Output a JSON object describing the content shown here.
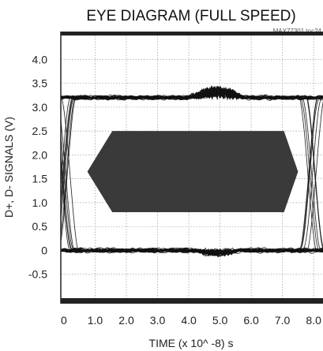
{
  "chart_data": {
    "type": "line",
    "title": "EYE DIAGRAM (FULL SPEED)",
    "annotation": "MAX77301 toc24",
    "xlabel": "TIME (x 10^ -8) s",
    "ylabel": "D+, D- SIGNALS (V)",
    "xlim": [
      -0.1,
      8.3
    ],
    "ylim": [
      -1.0,
      4.5
    ],
    "grid": true,
    "x_ticks": [
      0,
      1.0,
      2.0,
      3.0,
      4.0,
      5.0,
      6.0,
      7.0,
      8.0
    ],
    "x_tick_labels": [
      "0",
      "1.0",
      "2.0",
      "3.0",
      "4.0",
      "5.0",
      "6.0",
      "7.0",
      "8.0"
    ],
    "y_ticks": [
      4.0,
      3.5,
      3.0,
      2.5,
      2.0,
      1.5,
      1.0,
      0.5,
      0,
      -0.5
    ],
    "y_tick_labels": [
      "4.0",
      "3.5",
      "3.0",
      "2.5",
      "2.0",
      "1.5",
      "1.0",
      "0.5",
      "0",
      "-0.5"
    ],
    "colors": {
      "traces": "#111111",
      "grid": "#9a9a9a",
      "frame": "#222222",
      "mask": "#3a3a3a"
    },
    "eye": {
      "high_level": 3.2,
      "low_level": 0.0,
      "crossing_left": 0.05,
      "crossing_right": 7.95,
      "edge_half_width": 0.3,
      "trace_count": 20
    },
    "mask": {
      "points": [
        [
          0.75,
          1.65
        ],
        [
          1.55,
          2.5
        ],
        [
          7.05,
          2.5
        ],
        [
          7.5,
          1.65
        ],
        [
          7.05,
          0.8
        ],
        [
          1.55,
          0.8
        ]
      ]
    }
  }
}
